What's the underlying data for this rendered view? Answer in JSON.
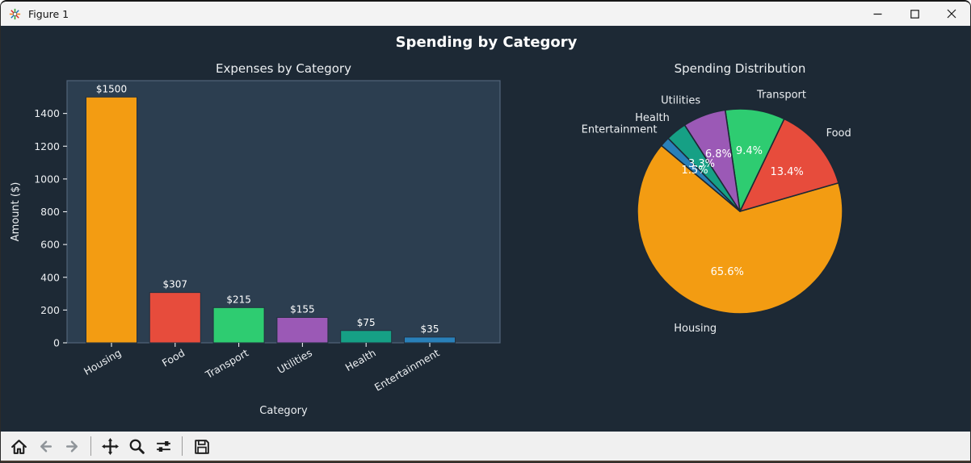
{
  "window": {
    "title": "Figure 1"
  },
  "suptitle": "Spending by Category",
  "chart_data": [
    {
      "type": "bar",
      "title": "Expenses by Category",
      "xlabel": "Category",
      "ylabel": "Amount ($)",
      "categories": [
        "Housing",
        "Food",
        "Transport",
        "Utilities",
        "Health",
        "Entertainment"
      ],
      "values": [
        1500,
        307,
        215,
        155,
        75,
        35
      ],
      "bar_labels": [
        "$1500",
        "$307",
        "$215",
        "$155",
        "$75",
        "$35"
      ],
      "colors": [
        "#f39c12",
        "#e74c3c",
        "#2ecc71",
        "#9b59b6",
        "#16a085",
        "#2980b9"
      ],
      "yticks": [
        0,
        200,
        400,
        600,
        800,
        1000,
        1200,
        1400
      ],
      "ylim": [
        0,
        1600
      ],
      "grid": false,
      "tick_rotation": -30
    },
    {
      "type": "pie",
      "title": "Spending Distribution",
      "labels": [
        "Housing",
        "Food",
        "Transport",
        "Utilities",
        "Health",
        "Entertainment"
      ],
      "values": [
        1500,
        307,
        215,
        155,
        75,
        35
      ],
      "percent_labels": [
        "65.6%",
        "13.4%",
        "9.4%",
        "6.8%",
        "3.3%",
        "1.5%"
      ],
      "colors": [
        "#f39c12",
        "#e74c3c",
        "#2ecc71",
        "#9b59b6",
        "#16a085",
        "#2980b9"
      ],
      "start_angle": 140,
      "direction": "counterclockwise",
      "label_distance": 1.1,
      "pct_distance": 0.6
    }
  ],
  "toolbar": {
    "buttons": [
      "home",
      "back",
      "forward",
      "|",
      "pan",
      "zoom",
      "subplots",
      "|",
      "save"
    ],
    "disabled": [
      "back",
      "forward"
    ]
  },
  "theme": {
    "figure_bg": "#1d2935",
    "axes_bg": "#2c3e50",
    "spine": "#51657a",
    "text": "#eceff2",
    "label_text": "#ffffff",
    "icon": "#1c1c1c",
    "icon_disabled": "#8f9499"
  }
}
